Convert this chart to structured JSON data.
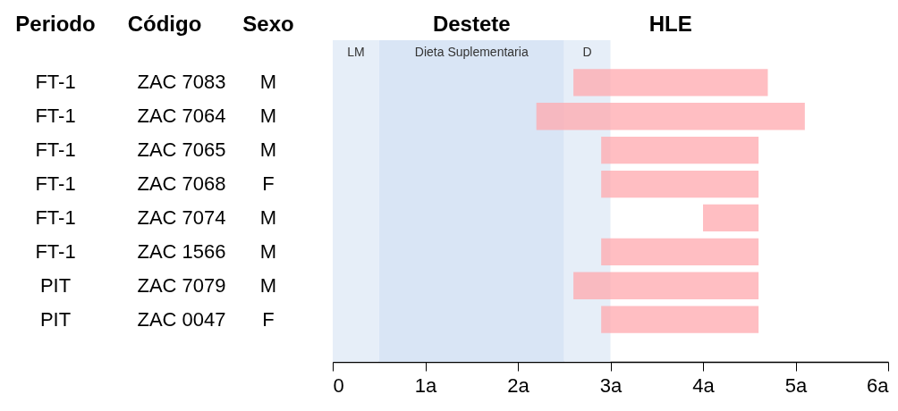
{
  "chart_data": {
    "type": "bar",
    "orientation": "horizontal",
    "ylabel": "Código",
    "categories": [
      "ZAC 7083",
      "ZAC 7064",
      "ZAC 7065",
      "ZAC 7068",
      "ZAC 7074",
      "ZAC 1566",
      "ZAC 7079",
      "ZAC 0047"
    ],
    "series": [
      {
        "name": "HLE",
        "color": "#ffa8ae",
        "values": [
          2.1,
          2.9,
          1.7,
          1.7,
          0.6,
          1.7,
          2.0,
          1.7
        ],
        "base": [
          2.6,
          2.2,
          2.9,
          2.9,
          4.0,
          2.9,
          2.6,
          2.9
        ]
      }
    ],
    "xlim": [
      0,
      6
    ],
    "xticks": [
      0,
      {
        "value": 1,
        "label": "1a"
      },
      {
        "value": 2,
        "label": "2a"
      },
      {
        "value": 3,
        "label": "3a"
      },
      {
        "value": 4,
        "label": "4a"
      },
      {
        "value": 5,
        "label": "5a"
      },
      {
        "value": 6,
        "label": "6a"
      }
    ],
    "bands": [
      {
        "axis": "x",
        "from": 0,
        "to": 0.5,
        "label": "LM",
        "color": "#e6eef8"
      },
      {
        "axis": "x",
        "from": 0.5,
        "to": 2.5,
        "label": "Dieta Suplementaria",
        "color": "#d9e5f5"
      },
      {
        "axis": "x",
        "from": 2.5,
        "to": 3,
        "label": "D",
        "color": "#e6eef8"
      }
    ],
    "annotations": [
      "Periodo",
      "Sexo",
      "Destete",
      "FT-1",
      "M",
      "FT-1",
      "M",
      "FT-1",
      "M",
      "FT-1",
      "F",
      "FT-1",
      "M",
      "FT-1",
      "M",
      "PIT",
      "M",
      "PIT",
      "F"
    ],
    "grid": false,
    "legend": false
  }
}
